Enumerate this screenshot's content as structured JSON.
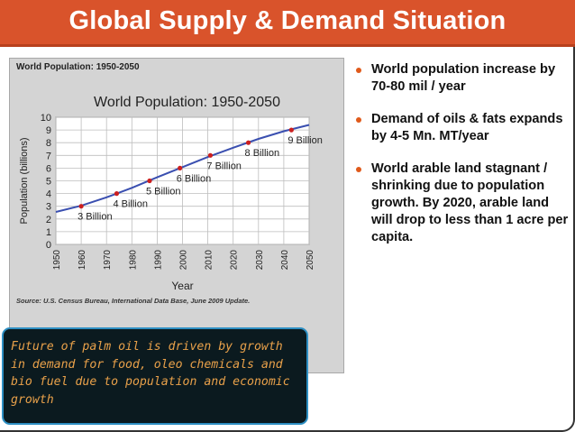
{
  "slide": {
    "title": "Global Supply & Demand Situation",
    "chart_panel_title": "World Population: 1950-2050",
    "source_note": "Source: U.S. Census Bureau, International Data Base, June 2009 Update.",
    "bullets": [
      "World population increase by 70-80 mil / year",
      "Demand of oils & fats expands by 4-5 Mn. MT/year",
      "World arable land stagnant / shrinking due to population growth. By 2020, arable land will drop to less than 1 acre per capita."
    ],
    "callout": "Future of palm oil is driven by growth in demand for food, oleo chemicals and bio fuel due to population  and economic growth"
  },
  "colors": {
    "accent": "#d9532b",
    "line": "#3a4fb0",
    "marker": "#cc1f1f",
    "callout_border": "#2d8fc3",
    "callout_text": "#e9a14a",
    "bullet": "#e05a1b"
  },
  "chart_data": {
    "type": "line",
    "title": "World Population: 1950-2050",
    "xlabel": "Year",
    "ylabel": "Population (billions)",
    "xlim": [
      1950,
      2050
    ],
    "ylim": [
      0,
      10
    ],
    "x_ticks": [
      1950,
      1960,
      1970,
      1980,
      1990,
      2000,
      2010,
      2020,
      2030,
      2040,
      2050
    ],
    "y_ticks": [
      0,
      1,
      2,
      3,
      4,
      5,
      6,
      7,
      8,
      9,
      10
    ],
    "grid": true,
    "series": [
      {
        "name": "World population",
        "x": [
          1950,
          1960,
          1970,
          1980,
          1990,
          2000,
          2010,
          2020,
          2030,
          2040,
          2050
        ],
        "y": [
          2.55,
          3.04,
          3.7,
          4.45,
          5.28,
          6.08,
          6.87,
          7.6,
          8.3,
          8.9,
          9.4
        ]
      }
    ],
    "milestones": [
      {
        "x": 1960,
        "y": 3,
        "label": "3 Billion"
      },
      {
        "x": 1974,
        "y": 4,
        "label": "4 Billion"
      },
      {
        "x": 1987,
        "y": 5,
        "label": "5 Billion"
      },
      {
        "x": 1999,
        "y": 6,
        "label": "6 Billion"
      },
      {
        "x": 2011,
        "y": 7,
        "label": "7 Billion"
      },
      {
        "x": 2026,
        "y": 8,
        "label": "8 Billion"
      },
      {
        "x": 2043,
        "y": 9,
        "label": "9 Billion"
      }
    ]
  }
}
